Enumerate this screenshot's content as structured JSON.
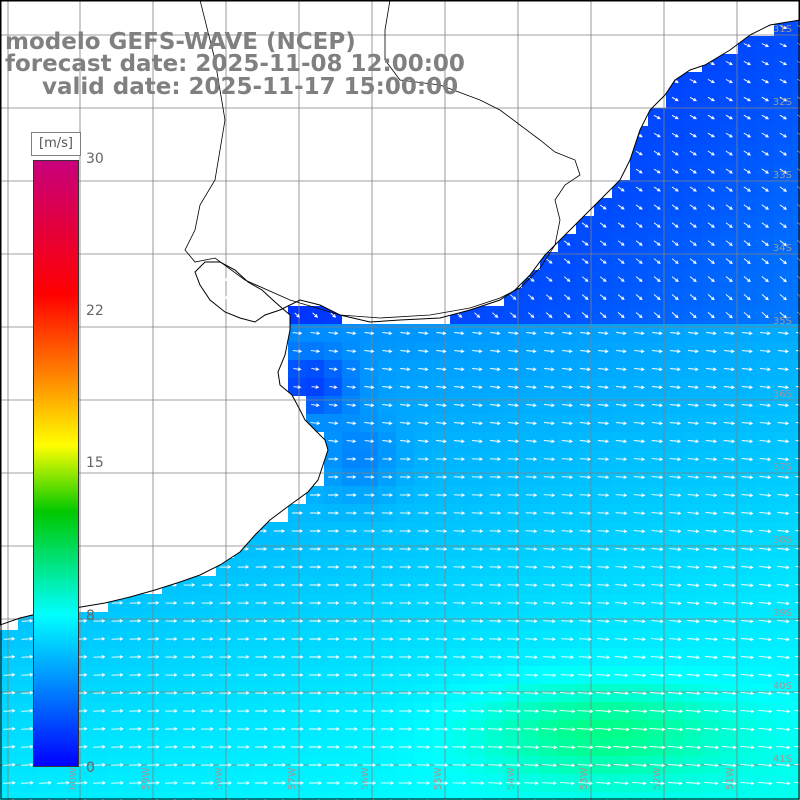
{
  "title": {
    "line1": "modelo GEFS-WAVE (NCEP)",
    "line2": "forecast date: 2025-11-08 12:00:00",
    "line3": "valid date: 2025-11-17 15:00:00"
  },
  "colorbar": {
    "units": "[m/s]",
    "ticks": [
      "30",
      "22",
      "15",
      "8",
      "0"
    ],
    "tick_values": [
      30,
      22,
      15,
      8,
      0
    ],
    "min": 0,
    "max": 30,
    "colors": [
      "#0000ff",
      "#00ffff",
      "#00c800",
      "#ffff00",
      "#ff7f00",
      "#ff0000",
      "#c8007c"
    ]
  },
  "map": {
    "variable": "wind speed and direction",
    "prevailing_direction": "westerly to south-easterly flow",
    "land_color": "#ffffff",
    "coast_color": "#000000",
    "grid_color": "#808080",
    "lat_labels": [
      "31S",
      "32S",
      "33S",
      "34S",
      "35S",
      "36S",
      "37S",
      "38S",
      "39S",
      "40S",
      "41S"
    ],
    "lon_labels": [
      "60W",
      "59W",
      "58W",
      "57W",
      "56W",
      "55W",
      "54W",
      "53W",
      "52W",
      "51W"
    ]
  }
}
